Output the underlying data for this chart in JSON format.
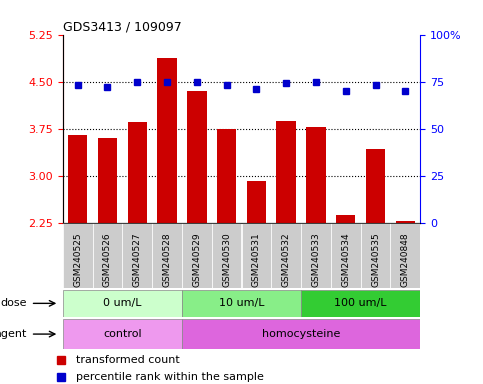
{
  "title": "GDS3413 / 109097",
  "samples": [
    "GSM240525",
    "GSM240526",
    "GSM240527",
    "GSM240528",
    "GSM240529",
    "GSM240530",
    "GSM240531",
    "GSM240532",
    "GSM240533",
    "GSM240534",
    "GSM240535",
    "GSM240848"
  ],
  "transformed_count": [
    3.65,
    3.6,
    3.85,
    4.88,
    4.35,
    3.75,
    2.92,
    3.87,
    3.77,
    2.38,
    3.42,
    2.27
  ],
  "percentile_rank": [
    73,
    72,
    75,
    75,
    75,
    73,
    71,
    74,
    75,
    70,
    73,
    70
  ],
  "ylim_left": [
    2.25,
    5.25
  ],
  "ylim_right": [
    0,
    100
  ],
  "yticks_left": [
    2.25,
    3.0,
    3.75,
    4.5,
    5.25
  ],
  "yticks_right": [
    0,
    25,
    50,
    75,
    100
  ],
  "ytick_labels_right": [
    "0",
    "25",
    "50",
    "75",
    "100%"
  ],
  "bar_color": "#cc0000",
  "dot_color": "#0000cc",
  "dose_groups": [
    {
      "label": "0 um/L",
      "start": 0,
      "end": 4,
      "color": "#ccffcc"
    },
    {
      "label": "10 um/L",
      "start": 4,
      "end": 8,
      "color": "#88ee88"
    },
    {
      "label": "100 um/L",
      "start": 8,
      "end": 12,
      "color": "#33cc33"
    }
  ],
  "agent_groups": [
    {
      "label": "control",
      "start": 0,
      "end": 4,
      "color": "#ee99ee"
    },
    {
      "label": "homocysteine",
      "start": 4,
      "end": 12,
      "color": "#dd66dd"
    }
  ],
  "legend_bar_label": "transformed count",
  "legend_dot_label": "percentile rank within the sample",
  "dose_label": "dose",
  "agent_label": "agent",
  "background_color": "#ffffff",
  "plot_bg_color": "#ffffff",
  "tick_area_bg": "#cccccc"
}
